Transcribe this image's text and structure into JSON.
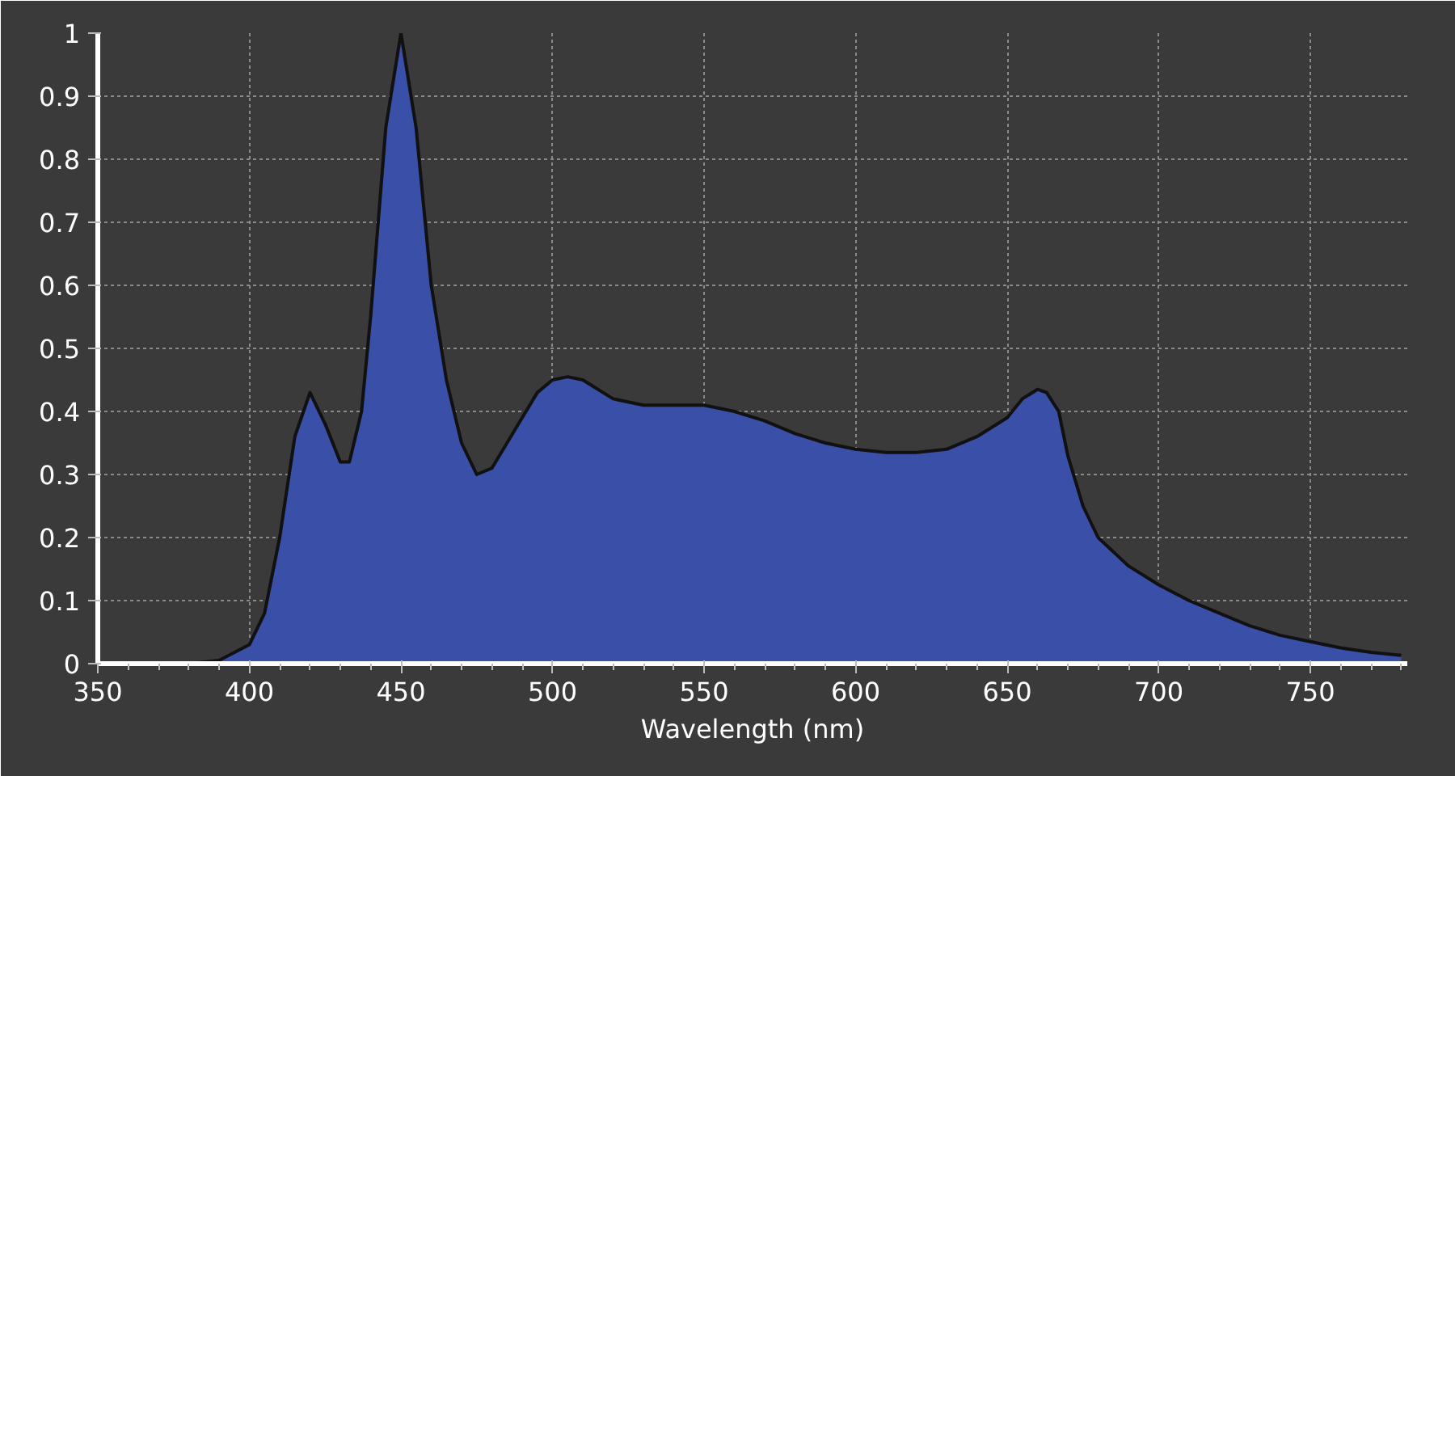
{
  "chart_data": {
    "type": "area",
    "xlabel": "Wavelength (nm)",
    "x": [
      380,
      390,
      400,
      405,
      410,
      415,
      420,
      425,
      430,
      433,
      437,
      440,
      445,
      450,
      455,
      460,
      465,
      470,
      475,
      480,
      485,
      490,
      495,
      500,
      505,
      510,
      520,
      530,
      540,
      550,
      560,
      570,
      580,
      590,
      600,
      610,
      620,
      630,
      640,
      650,
      655,
      660,
      663,
      667,
      670,
      675,
      680,
      690,
      700,
      710,
      720,
      730,
      740,
      750,
      760,
      770,
      780
    ],
    "series": [
      {
        "color": "#3a4fa8",
        "values": [
          0,
          0.005,
          0.03,
          0.08,
          0.2,
          0.36,
          0.43,
          0.38,
          0.32,
          0.32,
          0.4,
          0.55,
          0.85,
          1.0,
          0.85,
          0.6,
          0.45,
          0.35,
          0.3,
          0.31,
          0.35,
          0.39,
          0.43,
          0.45,
          0.455,
          0.45,
          0.42,
          0.41,
          0.41,
          0.41,
          0.4,
          0.385,
          0.365,
          0.35,
          0.34,
          0.335,
          0.335,
          0.34,
          0.36,
          0.39,
          0.42,
          0.435,
          0.43,
          0.4,
          0.33,
          0.25,
          0.2,
          0.155,
          0.125,
          0.1,
          0.08,
          0.06,
          0.045,
          0.035,
          0.025,
          0.018,
          0.013
        ]
      }
    ],
    "xlim": [
      350,
      782
    ],
    "ylim": [
      0,
      1
    ],
    "xticks": [
      350,
      400,
      450,
      500,
      550,
      600,
      650,
      700,
      750
    ],
    "yticks": [
      0,
      0.1,
      0.2,
      0.3,
      0.4,
      0.5,
      0.6,
      0.7,
      0.8,
      0.9,
      1
    ],
    "grid": true
  }
}
